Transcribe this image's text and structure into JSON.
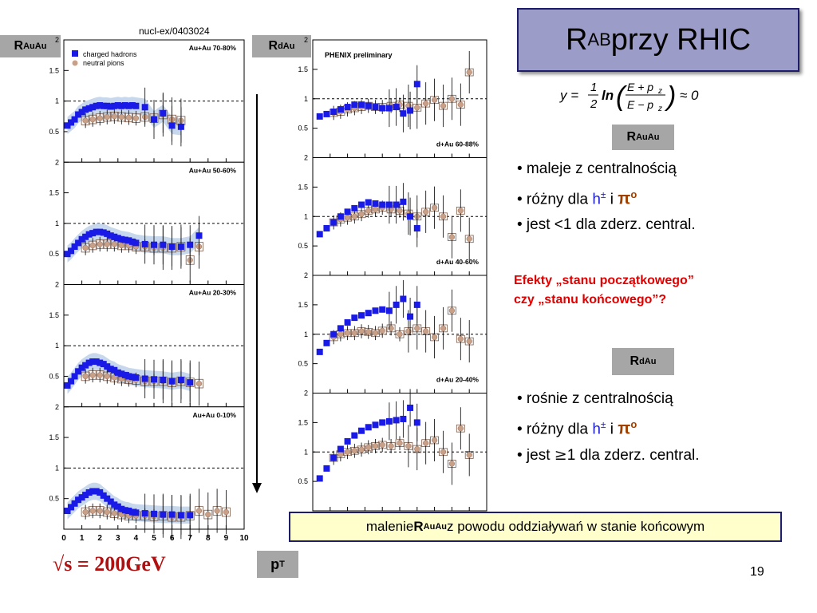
{
  "citation": "nucl-ex/0403024",
  "title": {
    "main": "R",
    "sub": "AB",
    "rest": " przy RHIC"
  },
  "left_label": {
    "main": "R",
    "sub": "AuAu"
  },
  "right_label": {
    "main": "R",
    "sub": "dAu"
  },
  "pt_label": {
    "main": "p",
    "sub": "T"
  },
  "energy": "√s = 200GeV",
  "page_number": "19",
  "formula": {
    "lhs": "y =",
    "frac_num": "1",
    "frac_den": "2",
    "ln": "ln",
    "inner_num": "E + p",
    "inner_den": "E − p",
    "z": "z",
    "rhs": "≈ 0"
  },
  "auau_box": {
    "main": "R",
    "sub": "AuAu"
  },
  "dau_box": {
    "main": "R",
    "sub": "dAu"
  },
  "auau_bullets": {
    "b1": "• maleje z centralnością",
    "b2_pre": "• różny dla ",
    "b2_h": "h",
    "b2_pm": "±",
    "b2_i": " i ",
    "b2_pi": "π",
    "b2_o": "o",
    "b3": "• jest  <1 dla zderz. central."
  },
  "question": {
    "line1": "Efekty „stanu początkowego”",
    "line2": "czy „stanu końcowego”?"
  },
  "dau_bullets": {
    "b1": "• rośnie z centralnością",
    "b2_pre": "• różny dla ",
    "b2_h": "h",
    "b2_pm": "±",
    "b2_i": " i ",
    "b2_pi": "π",
    "b2_o": "o",
    "b3_pre": "• jest ",
    "b3_sym": "≥",
    "b3_post": "1 dla zderz. central."
  },
  "bottom_note": {
    "pre": "malenie ",
    "bold": "R",
    "bold_sub": "AuAu",
    "post": "  z powodu oddziaływań w stanie końcowym"
  },
  "colors": {
    "title_bg": "#9c9cc8",
    "charged_hadrons": "#1a1ae6",
    "neutral_pions": "#c8a088",
    "band": "#c8d8ec",
    "accent_red": "#e00000"
  },
  "chart_data": [
    {
      "type": "scatter",
      "title": "",
      "xlabel": "",
      "ylabel": "",
      "x_ticks": [
        "0",
        "1",
        "2",
        "3",
        "4",
        "5",
        "6",
        "7",
        "8",
        "9",
        "10"
      ],
      "y_ticks": [
        "0.5",
        "1",
        "1.5",
        "2"
      ],
      "xlim": [
        0,
        10
      ],
      "ylim": [
        0,
        2
      ],
      "legend": [
        "charged hadrons",
        "neutral pions"
      ],
      "legend_position": "top-left",
      "panels": [
        {
          "label": "Au+Au 70-80%",
          "series": [
            {
              "name": "charged hadrons",
              "x": [
                0.2,
                0.4,
                0.6,
                0.8,
                1.0,
                1.2,
                1.4,
                1.6,
                1.8,
                2.0,
                2.2,
                2.4,
                2.6,
                2.8,
                3.0,
                3.2,
                3.4,
                3.6,
                3.8,
                4.0,
                4.5,
                5.0,
                5.5,
                6.0,
                6.5
              ],
              "y": [
                0.6,
                0.65,
                0.7,
                0.78,
                0.82,
                0.86,
                0.88,
                0.9,
                0.92,
                0.93,
                0.92,
                0.92,
                0.91,
                0.92,
                0.93,
                0.92,
                0.93,
                0.92,
                0.93,
                0.92,
                0.9,
                0.7,
                0.8,
                0.6,
                0.58
              ]
            },
            {
              "name": "neutral pions",
              "x": [
                1.2,
                1.6,
                2.0,
                2.4,
                2.8,
                3.2,
                3.6,
                4.0,
                4.5,
                5.0,
                5.5,
                6.0,
                6.5
              ],
              "y": [
                0.68,
                0.7,
                0.72,
                0.74,
                0.75,
                0.74,
                0.73,
                0.72,
                0.74,
                0.72,
                0.78,
                0.7,
                0.68
              ]
            }
          ]
        },
        {
          "label": "Au+Au 50-60%",
          "series": [
            {
              "name": "charged hadrons",
              "x": [
                0.2,
                0.4,
                0.6,
                0.8,
                1.0,
                1.2,
                1.4,
                1.6,
                1.8,
                2.0,
                2.2,
                2.4,
                2.6,
                2.8,
                3.0,
                3.2,
                3.4,
                3.6,
                3.8,
                4.0,
                4.5,
                5.0,
                5.5,
                6.0,
                6.5,
                7.0,
                7.5
              ],
              "y": [
                0.5,
                0.55,
                0.62,
                0.68,
                0.74,
                0.78,
                0.82,
                0.84,
                0.86,
                0.86,
                0.85,
                0.83,
                0.8,
                0.78,
                0.76,
                0.74,
                0.73,
                0.72,
                0.7,
                0.68,
                0.66,
                0.65,
                0.65,
                0.62,
                0.62,
                0.65,
                0.8
              ]
            },
            {
              "name": "neutral pions",
              "x": [
                1.2,
                1.6,
                2.0,
                2.4,
                2.8,
                3.2,
                3.6,
                4.0,
                4.5,
                5.0,
                5.5,
                6.0,
                6.5,
                7.0,
                7.5
              ],
              "y": [
                0.6,
                0.64,
                0.66,
                0.66,
                0.66,
                0.64,
                0.64,
                0.62,
                0.62,
                0.6,
                0.6,
                0.6,
                0.62,
                0.4,
                0.62
              ]
            }
          ]
        },
        {
          "label": "Au+Au 20-30%",
          "series": [
            {
              "name": "charged hadrons",
              "x": [
                0.2,
                0.4,
                0.6,
                0.8,
                1.0,
                1.2,
                1.4,
                1.6,
                1.8,
                2.0,
                2.2,
                2.4,
                2.6,
                2.8,
                3.0,
                3.2,
                3.4,
                3.6,
                3.8,
                4.0,
                4.5,
                5.0,
                5.5,
                6.0,
                6.5,
                7.0
              ],
              "y": [
                0.35,
                0.42,
                0.5,
                0.58,
                0.64,
                0.68,
                0.72,
                0.74,
                0.74,
                0.72,
                0.7,
                0.66,
                0.62,
                0.6,
                0.56,
                0.54,
                0.52,
                0.5,
                0.49,
                0.48,
                0.46,
                0.45,
                0.44,
                0.42,
                0.44,
                0.4
              ]
            },
            {
              "name": "neutral pions",
              "x": [
                1.2,
                1.6,
                2.0,
                2.4,
                2.8,
                3.2,
                3.6,
                4.0,
                4.5,
                5.0,
                5.5,
                6.0,
                6.5,
                7.0,
                7.5
              ],
              "y": [
                0.5,
                0.52,
                0.52,
                0.5,
                0.48,
                0.46,
                0.45,
                0.44,
                0.42,
                0.42,
                0.42,
                0.4,
                0.42,
                0.4,
                0.38
              ]
            }
          ]
        },
        {
          "label": "Au+Au 0-10%",
          "series": [
            {
              "name": "charged hadrons",
              "x": [
                0.2,
                0.4,
                0.6,
                0.8,
                1.0,
                1.2,
                1.4,
                1.6,
                1.8,
                2.0,
                2.2,
                2.4,
                2.6,
                2.8,
                3.0,
                3.2,
                3.4,
                3.6,
                3.8,
                4.0,
                4.5,
                5.0,
                5.5,
                6.0,
                6.5,
                7.0
              ],
              "y": [
                0.3,
                0.36,
                0.42,
                0.48,
                0.52,
                0.56,
                0.6,
                0.62,
                0.62,
                0.6,
                0.55,
                0.5,
                0.45,
                0.4,
                0.37,
                0.33,
                0.31,
                0.3,
                0.28,
                0.27,
                0.26,
                0.25,
                0.24,
                0.24,
                0.23,
                0.23
              ]
            },
            {
              "name": "neutral pions",
              "x": [
                1.2,
                1.6,
                2.0,
                2.4,
                2.8,
                3.2,
                3.6,
                4.0,
                4.5,
                5.0,
                5.5,
                6.0,
                6.5,
                7.0,
                7.5,
                8.0,
                8.5,
                9.0
              ],
              "y": [
                0.28,
                0.3,
                0.3,
                0.28,
                0.26,
                0.24,
                0.22,
                0.22,
                0.22,
                0.21,
                0.22,
                0.2,
                0.2,
                0.22,
                0.3,
                0.24,
                0.3,
                0.28
              ]
            }
          ]
        }
      ]
    },
    {
      "type": "scatter",
      "title": "PHENIX preliminary",
      "xlabel": "",
      "ylabel": "",
      "y_ticks": [
        "0.5",
        "1",
        "1.5",
        "2"
      ],
      "xlim": [
        0,
        10
      ],
      "ylim": [
        0,
        2
      ],
      "panels": [
        {
          "label": "d+Au 60-88%",
          "series": [
            {
              "name": "charged hadrons",
              "x": [
                0.4,
                0.8,
                1.2,
                1.6,
                2.0,
                2.4,
                2.8,
                3.2,
                3.6,
                4.0,
                4.4,
                4.8,
                5.2,
                5.6,
                6.0
              ],
              "y": [
                0.7,
                0.74,
                0.78,
                0.82,
                0.86,
                0.9,
                0.9,
                0.88,
                0.86,
                0.84,
                0.84,
                0.86,
                0.75,
                0.8,
                1.25
              ]
            },
            {
              "name": "neutral pions",
              "x": [
                1.2,
                1.6,
                2.0,
                2.4,
                2.8,
                3.2,
                3.6,
                4.0,
                4.5,
                5.0,
                5.5,
                6.0,
                6.5,
                7.0,
                7.5,
                8.0,
                8.5,
                9.0
              ],
              "y": [
                0.76,
                0.78,
                0.82,
                0.84,
                0.86,
                0.88,
                0.86,
                0.86,
                0.88,
                0.9,
                0.88,
                0.85,
                0.92,
                0.98,
                0.88,
                1.0,
                0.9,
                1.45
              ]
            }
          ]
        },
        {
          "label": "d+Au 40-60%",
          "series": [
            {
              "name": "charged hadrons",
              "x": [
                0.4,
                0.8,
                1.2,
                1.6,
                2.0,
                2.4,
                2.8,
                3.2,
                3.6,
                4.0,
                4.4,
                4.8,
                5.2,
                5.6,
                6.0
              ],
              "y": [
                0.7,
                0.8,
                0.9,
                1.0,
                1.08,
                1.14,
                1.2,
                1.24,
                1.22,
                1.2,
                1.2,
                1.2,
                1.25,
                1.0,
                0.8
              ]
            },
            {
              "name": "neutral pions",
              "x": [
                1.2,
                1.6,
                2.0,
                2.4,
                2.8,
                3.2,
                3.6,
                4.0,
                4.5,
                5.0,
                5.5,
                6.0,
                6.5,
                7.0,
                7.5,
                8.0,
                8.5,
                9.0
              ],
              "y": [
                0.9,
                0.95,
                0.98,
                1.0,
                1.04,
                1.1,
                1.12,
                1.15,
                1.12,
                1.1,
                1.05,
                1.0,
                1.08,
                1.15,
                1.0,
                0.65,
                1.1,
                0.62
              ]
            }
          ]
        },
        {
          "label": "d+Au 20-40%",
          "series": [
            {
              "name": "charged hadrons",
              "x": [
                0.4,
                0.8,
                1.2,
                1.6,
                2.0,
                2.4,
                2.8,
                3.2,
                3.6,
                4.0,
                4.4,
                4.8,
                5.2,
                5.6,
                6.0
              ],
              "y": [
                0.7,
                0.85,
                1.0,
                1.1,
                1.2,
                1.28,
                1.32,
                1.36,
                1.4,
                1.42,
                1.4,
                1.5,
                1.6,
                1.3,
                1.5
              ]
            },
            {
              "name": "neutral pions",
              "x": [
                1.2,
                1.6,
                2.0,
                2.4,
                2.8,
                3.2,
                3.6,
                4.0,
                4.5,
                5.0,
                5.5,
                6.0,
                6.5,
                7.0,
                7.5,
                8.0,
                8.5,
                9.0
              ],
              "y": [
                0.95,
                1.0,
                1.02,
                1.02,
                1.05,
                1.04,
                1.02,
                1.06,
                1.1,
                1.0,
                1.05,
                1.1,
                1.05,
                0.95,
                1.1,
                1.4,
                0.92,
                0.88
              ]
            }
          ]
        },
        {
          "label": "",
          "series": [
            {
              "name": "charged hadrons",
              "x": [
                0.4,
                0.8,
                1.2,
                1.6,
                2.0,
                2.4,
                2.8,
                3.2,
                3.6,
                4.0,
                4.4,
                4.8,
                5.2,
                5.6,
                6.0
              ],
              "y": [
                0.55,
                0.72,
                0.9,
                1.05,
                1.18,
                1.28,
                1.36,
                1.42,
                1.46,
                1.5,
                1.52,
                1.54,
                1.56,
                1.75,
                1.5
              ]
            },
            {
              "name": "neutral pions",
              "x": [
                1.2,
                1.6,
                2.0,
                2.4,
                2.8,
                3.2,
                3.6,
                4.0,
                4.5,
                5.0,
                5.5,
                6.0,
                6.5,
                7.0,
                7.5,
                8.0,
                8.5,
                9.0
              ],
              "y": [
                0.9,
                0.96,
                1.0,
                1.02,
                1.04,
                1.08,
                1.1,
                1.12,
                1.1,
                1.15,
                1.1,
                1.05,
                1.15,
                1.2,
                1.0,
                0.8,
                1.4,
                0.95
              ]
            }
          ]
        }
      ]
    }
  ]
}
